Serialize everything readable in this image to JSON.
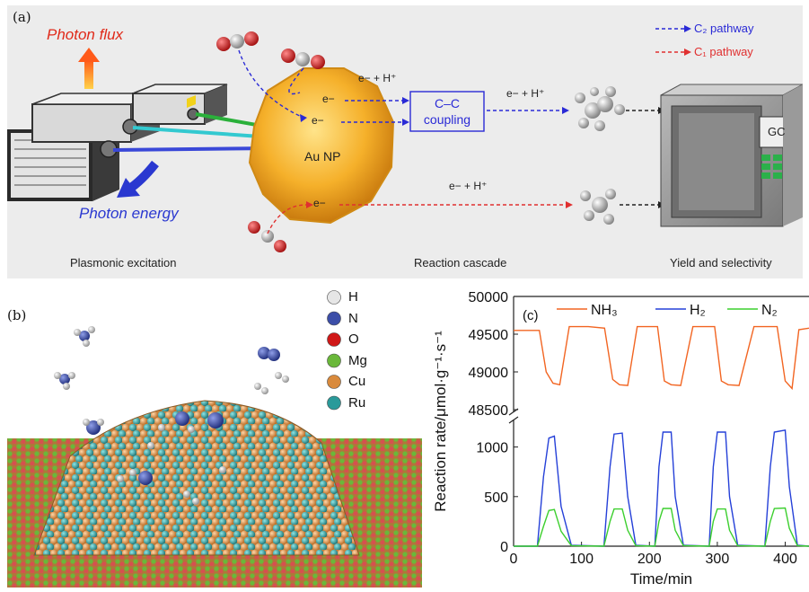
{
  "panel_a": {
    "letter": "(a)",
    "photon_flux": "Photon flux",
    "photon_energy": "Photon energy",
    "au_np": "Au NP",
    "electron": "e−",
    "e_h_top": "e− + H⁺",
    "e_h_mid": "e− + H⁺",
    "e_h_bottom": "e− + H⁺",
    "coupling": "C–C coupling",
    "legend_c2": "C₂ pathway",
    "legend_c1": "C₁ pathway",
    "gc": "GC",
    "stage_1": "Plasmonic excitation",
    "stage_2": "Reaction cascade",
    "stage_3": "Yield and selectivity",
    "colors": {
      "c2": "#2a2ad6",
      "c1": "#e03030",
      "flux": "#e02a1a",
      "energy": "#2a38d0"
    }
  },
  "panel_b": {
    "letter": "(b)",
    "legend": [
      {
        "label": "H",
        "color": "#e6e6e6"
      },
      {
        "label": "N",
        "color": "#3c4ea8"
      },
      {
        "label": "O",
        "color": "#d01818"
      },
      {
        "label": "Mg",
        "color": "#6ab83a"
      },
      {
        "label": "Cu",
        "color": "#d98a3c"
      },
      {
        "label": "Ru",
        "color": "#2a9a9a"
      }
    ]
  },
  "panel_c": {
    "letter": "(c)",
    "chart_data": {
      "type": "line",
      "xlabel": "Time/min",
      "ylabel": "Reaction rate/μmol·g⁻¹·s⁻¹",
      "xlim": [
        0,
        435
      ],
      "x_ticks": [
        0,
        100,
        200,
        300,
        400
      ],
      "y_ticks_lower": [
        0,
        500,
        1000
      ],
      "y_ticks_upper": [
        48500,
        49000,
        49500,
        50000
      ],
      "ylim_lower": [
        0,
        1250
      ],
      "ylim_upper": [
        48500,
        50000
      ],
      "axis_break": true,
      "legend_position": "top",
      "series": [
        {
          "name": "NH₃",
          "color": "#f26522",
          "x": [
            0,
            38,
            48,
            58,
            68,
            82,
            100,
            110,
            134,
            146,
            156,
            168,
            182,
            192,
            212,
            222,
            232,
            246,
            264,
            276,
            296,
            306,
            316,
            332,
            354,
            366,
            388,
            400,
            410,
            420,
            435
          ],
          "values": [
            49550,
            49550,
            49000,
            48850,
            48830,
            49600,
            49600,
            49600,
            49580,
            48900,
            48830,
            48820,
            49600,
            49600,
            49600,
            48880,
            48830,
            48820,
            49600,
            49600,
            49600,
            48880,
            48830,
            48820,
            49600,
            49600,
            49600,
            48880,
            48780,
            49560,
            49580
          ]
        },
        {
          "name": "H₂",
          "color": "#2540d8",
          "x": [
            0,
            35,
            44,
            52,
            60,
            70,
            85,
            133,
            142,
            148,
            160,
            168,
            180,
            208,
            214,
            220,
            232,
            238,
            250,
            288,
            294,
            300,
            312,
            318,
            330,
            370,
            378,
            384,
            400,
            406,
            418,
            435
          ],
          "values": [
            0,
            0,
            700,
            1090,
            1110,
            400,
            10,
            0,
            800,
            1130,
            1140,
            500,
            10,
            0,
            800,
            1150,
            1150,
            500,
            10,
            0,
            800,
            1150,
            1150,
            500,
            10,
            0,
            800,
            1150,
            1170,
            600,
            10,
            0
          ]
        },
        {
          "name": "N₂",
          "color": "#3ccf2e",
          "x": [
            0,
            35,
            44,
            52,
            60,
            70,
            85,
            133,
            142,
            148,
            160,
            168,
            180,
            208,
            214,
            220,
            232,
            238,
            250,
            288,
            294,
            300,
            312,
            318,
            330,
            370,
            378,
            384,
            400,
            406,
            418,
            435
          ],
          "values": [
            0,
            0,
            200,
            360,
            370,
            150,
            5,
            0,
            250,
            375,
            375,
            160,
            5,
            0,
            250,
            380,
            380,
            160,
            5,
            0,
            250,
            375,
            375,
            160,
            5,
            0,
            250,
            380,
            385,
            180,
            5,
            0
          ]
        }
      ]
    }
  }
}
